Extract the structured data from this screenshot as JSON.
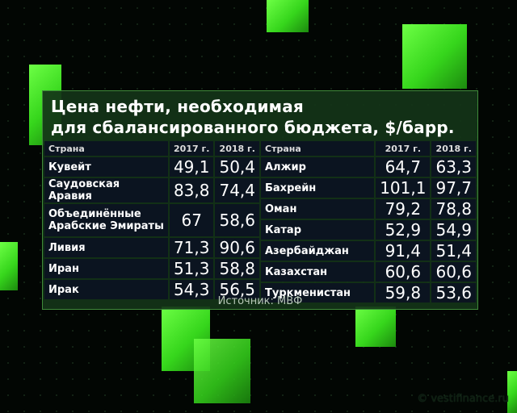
{
  "title_line1": "Цена нефти, необходимая",
  "title_line2": "для сбалансированного бюджета, $/барр.",
  "source": "Источник: МВФ",
  "watermark": "© vestifinance.ru",
  "colors": {
    "accent": "#4cff2a",
    "panel": "#143418",
    "cell": "#0b1420"
  },
  "chart_data": {
    "type": "table",
    "title": "Цена нефти, необходимая для сбалансированного бюджета, $/барр.",
    "columns": [
      "Страна",
      "2017 г.",
      "2018 г."
    ],
    "left": [
      [
        "Кувейт",
        "49,1",
        "50,4"
      ],
      [
        "Саудовская Аравия",
        "83,8",
        "74,4"
      ],
      [
        "Объединённые Арабские Эмираты",
        "67",
        "58,6"
      ],
      [
        "Ливия",
        "71,3",
        "90,6"
      ],
      [
        "Иран",
        "51,3",
        "58,8"
      ],
      [
        "Ирак",
        "54,3",
        "56,5"
      ]
    ],
    "right": [
      [
        "Алжир",
        "64,7",
        "63,3"
      ],
      [
        "Бахрейн",
        "101,1",
        "97,7"
      ],
      [
        "Оман",
        "79,2",
        "78,8"
      ],
      [
        "Катар",
        "52,9",
        "54,9"
      ],
      [
        "Азербайджан",
        "91,4",
        "51,4"
      ],
      [
        "Казахстан",
        "60,6",
        "60,6"
      ],
      [
        "Туркменистан",
        "59,8",
        "53,6"
      ]
    ]
  }
}
